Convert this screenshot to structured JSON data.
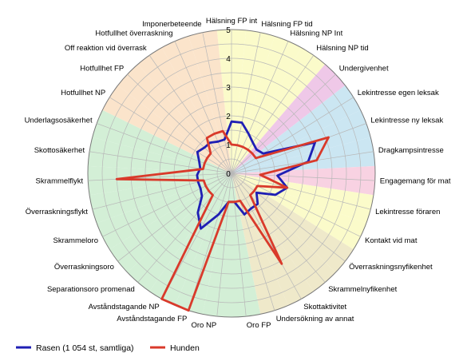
{
  "chart_data": {
    "type": "radar",
    "title": "",
    "rlim": [
      0,
      5
    ],
    "ticks": [
      "0",
      "1",
      "2",
      "3",
      "4",
      "5"
    ],
    "grid": true,
    "legend_position": "bottom-left",
    "categories": [
      "Hälsning FP int",
      "Hälsning FP tid",
      "Hälsning NP Int",
      "Hälsning NP tid",
      "Undergivenhet",
      "Lekintresse egen leksak",
      "Lekintresse ny leksak",
      "Dragkampsintresse",
      "Engagemang för mat",
      "Lekintresse föraren",
      "Kontakt vid mat",
      "Överraskningsnyfikenhet",
      "Skrammelnyfikenhet",
      "Skottaktivitet",
      "Undersökning av annat",
      "Oro FP",
      "Oro NP",
      "Avståndstagande FP",
      "Avståndstagande NP",
      "Separationsoro promenad",
      "Överraskningsoro",
      "Skrammeloro",
      "Överraskningsflykt",
      "Skrammelflykt",
      "Skottosäkerhet",
      "Underlagsosäkerhet",
      "Hotfullhet NP",
      "Hotfullhet FP",
      "Off reaktion vid överrask",
      "Hotfullhet överraskning",
      "Imponerbeteende"
    ],
    "series": [
      {
        "name": "Rasen (1 054 st, samtliga)",
        "color": "#1f1fb4",
        "values": [
          1.8,
          1.8,
          1.5,
          1.3,
          1.2,
          1.3,
          3.1,
          2.7,
          1.6,
          2.0,
          1.7,
          1.1,
          1.4,
          1.4,
          1.5,
          1.0,
          1.0,
          1.5,
          2.2,
          1.8,
          1.3,
          1.2,
          1.2,
          1.2,
          1.1,
          1.2,
          1.4,
          1.3,
          1.3,
          1.2,
          1.2
        ]
      },
      {
        "name": "Hunden",
        "color": "#d93a2b",
        "values": [
          1.0,
          1.0,
          1.0,
          1.0,
          1.0,
          1.0,
          3.6,
          3.0,
          1.0,
          2.0,
          1.0,
          1.0,
          1.0,
          3.6,
          1.0,
          1.0,
          1.0,
          5.0,
          5.0,
          1.0,
          1.0,
          1.0,
          1.0,
          4.0,
          1.0,
          1.0,
          1.0,
          1.0,
          1.5,
          1.5,
          1.5
        ]
      }
    ],
    "sectors": [
      {
        "from": 0,
        "to": 3,
        "color": "#fbfbca"
      },
      {
        "from": 4,
        "to": 4,
        "color": "#efc8e8"
      },
      {
        "from": 5,
        "to": 7,
        "color": "#cbe6f2"
      },
      {
        "from": 8,
        "to": 8,
        "color": "#f8d2e2"
      },
      {
        "from": 9,
        "to": 10,
        "color": "#fbfbca"
      },
      {
        "from": 11,
        "to": 14,
        "color": "#efe9ca"
      },
      {
        "from": 15,
        "to": 25,
        "color": "#d3efd6"
      },
      {
        "from": 26,
        "to": 30,
        "color": "#fbe4cb"
      }
    ]
  }
}
